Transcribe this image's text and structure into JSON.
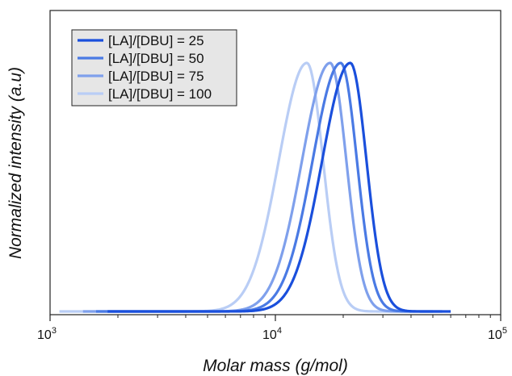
{
  "chart_data": {
    "type": "line",
    "xscale": "log",
    "xlim": [
      1000,
      100000
    ],
    "ylim": [
      0,
      1.08
    ],
    "xlabel": "Molar mass (g/mol)",
    "ylabel": "Normalized intensity (a.u)",
    "xticks": [
      {
        "value": 1000,
        "base": "10",
        "exp": "3"
      },
      {
        "value": 10000,
        "base": "10",
        "exp": "4"
      },
      {
        "value": 100000,
        "base": "10",
        "exp": "5"
      }
    ],
    "grid": false,
    "legend_position": "top-left",
    "series": [
      {
        "name": "[LA]/[DBU] = 25",
        "color": "#1a4fdc",
        "peak": 21500,
        "sigma_left": 0.125,
        "sigma_right": 0.072,
        "xmin": 1800,
        "xmax": 60000
      },
      {
        "name": "[LA]/[DBU] = 50",
        "color": "#4a7ae4",
        "peak": 19500,
        "sigma_left": 0.125,
        "sigma_right": 0.072,
        "xmin": 1600,
        "xmax": 55000
      },
      {
        "name": "[LA]/[DBU] = 75",
        "color": "#7fa0ec",
        "peak": 17500,
        "sigma_left": 0.125,
        "sigma_right": 0.072,
        "xmin": 1400,
        "xmax": 50000
      },
      {
        "name": "[LA]/[DBU] = 100",
        "color": "#b9cdf5",
        "peak": 13800,
        "sigma_left": 0.125,
        "sigma_right": 0.072,
        "xmin": 1100,
        "xmax": 40000
      }
    ],
    "x": [
      1000,
      2000,
      3000,
      4000,
      5000,
      6000,
      7000,
      8000,
      9000,
      10000,
      11000,
      12000,
      13000,
      14000,
      15000,
      16000,
      17000,
      18000,
      19000,
      20000,
      21000,
      22000,
      23000,
      24000,
      25000,
      26000,
      28000,
      30000,
      33000,
      36000,
      40000,
      45000,
      50000,
      60000,
      100000
    ]
  }
}
